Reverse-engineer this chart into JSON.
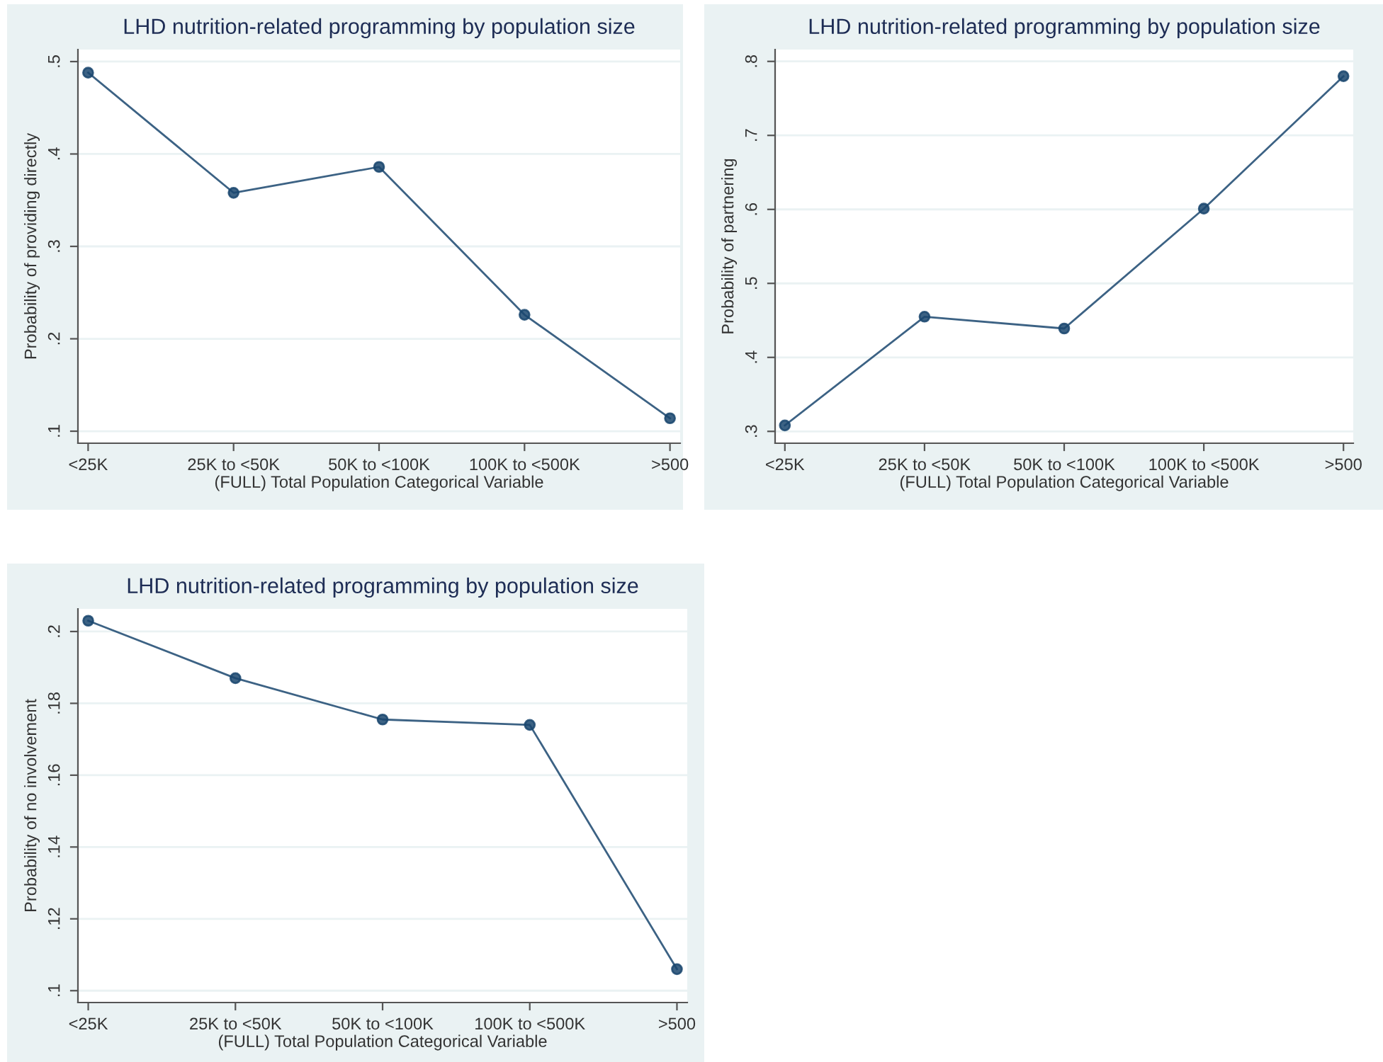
{
  "chart_data": [
    {
      "type": "line",
      "title": "LHD nutrition-related programming by population size",
      "xlabel": "(FULL) Total Population Categorical Variable",
      "ylabel": "Probability of providing directly",
      "categories": [
        "<25K",
        "25K to <50K",
        "50K to <100K",
        "100K to <500K",
        ">500"
      ],
      "series": [
        {
          "color": "#1a476f",
          "values": [
            0.488,
            0.358,
            0.386,
            0.226,
            0.114
          ]
        }
      ],
      "ylim": [
        0.087,
        0.513
      ],
      "yticks": [
        {
          "value": 0.1,
          "label": ".1"
        },
        {
          "value": 0.2,
          "label": ".2"
        },
        {
          "value": 0.3,
          "label": ".3"
        },
        {
          "value": 0.4,
          "label": ".4"
        },
        {
          "value": 0.5,
          "label": ".5"
        }
      ],
      "grid": "y",
      "marker": "circle",
      "line_style": "solid",
      "legend": false
    },
    {
      "type": "line",
      "title": "LHD nutrition-related programming by population size",
      "xlabel": "(FULL) Total Population Categorical Variable",
      "ylabel": "Probability of partnering",
      "categories": [
        "<25K",
        "25K to <50K",
        "50K to <100K",
        "100K to <500K",
        ">500"
      ],
      "series": [
        {
          "color": "#1a476f",
          "values": [
            0.308,
            0.455,
            0.439,
            0.601,
            0.78
          ]
        }
      ],
      "ylim": [
        0.284,
        0.816
      ],
      "yticks": [
        {
          "value": 0.3,
          "label": ".3"
        },
        {
          "value": 0.4,
          "label": ".4"
        },
        {
          "value": 0.5,
          "label": ".5"
        },
        {
          "value": 0.6,
          "label": ".6"
        },
        {
          "value": 0.7,
          "label": ".7"
        },
        {
          "value": 0.8,
          "label": ".8"
        }
      ],
      "grid": "y",
      "marker": "circle",
      "line_style": "solid",
      "legend": false
    },
    {
      "type": "line",
      "title": "LHD nutrition-related programming by population size",
      "xlabel": "(FULL) Total Population Categorical Variable",
      "ylabel": "Probability of no involvement",
      "categories": [
        "<25K",
        "25K to <50K",
        "50K to <100K",
        "100K to <500K",
        ">500"
      ],
      "series": [
        {
          "color": "#1a476f",
          "values": [
            0.203,
            0.187,
            0.1755,
            0.174,
            0.106
          ]
        }
      ],
      "ylim": [
        0.0967,
        0.2063
      ],
      "yticks": [
        {
          "value": 0.1,
          "label": ".1"
        },
        {
          "value": 0.12,
          "label": ".12"
        },
        {
          "value": 0.14,
          "label": ".14"
        },
        {
          "value": 0.16,
          "label": ".16"
        },
        {
          "value": 0.18,
          "label": ".18"
        },
        {
          "value": 0.2,
          "label": ".2"
        }
      ],
      "grid": "y",
      "marker": "circle",
      "line_style": "solid",
      "legend": false
    }
  ]
}
